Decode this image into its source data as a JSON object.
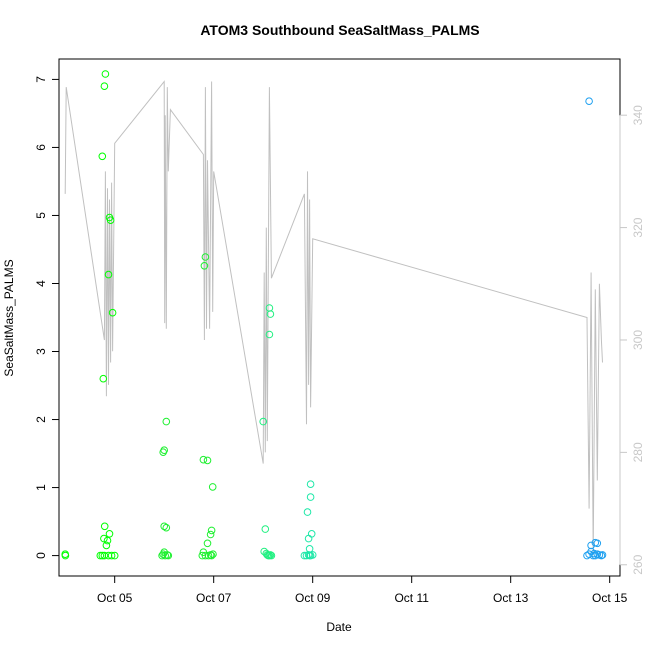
{
  "chart_data": {
    "type": "scatter",
    "title": "ATOM3 Southbound SeaSaltMass_PALMS",
    "xlabel": "Date",
    "ylabel": "SeaSaltMass_PALMS",
    "x_unit": "days",
    "x_range": [
      "2017-10-03T21:00",
      "2017-10-15T05:00"
    ],
    "x_ticks": [
      "Oct 05",
      "Oct 07",
      "Oct 09",
      "Oct 11",
      "Oct 13",
      "Oct 15"
    ],
    "x_tick_dates": [
      "2017-10-05",
      "2017-10-07",
      "2017-10-09",
      "2017-10-11",
      "2017-10-13",
      "2017-10-15"
    ],
    "ylim": [
      -0.3,
      7.3
    ],
    "y_ticks": [
      0,
      1,
      2,
      3,
      4,
      5,
      6,
      7
    ],
    "y2lim": [
      258,
      350
    ],
    "y2_ticks": [
      260,
      280,
      300,
      320,
      340
    ],
    "series": [
      {
        "color": "#00ff00",
        "points": [
          [
            "2017-10-04T00:00",
            0.02
          ],
          [
            "2017-10-04T00:05",
            0.0
          ],
          [
            "2017-10-04T18:00",
            5.87
          ],
          [
            "2017-10-04T19:00",
            6.9
          ],
          [
            "2017-10-04T19:30",
            7.08
          ],
          [
            "2017-10-04T21:30",
            4.97
          ],
          [
            "2017-10-04T22:00",
            4.93
          ],
          [
            "2017-10-04T21:00",
            4.13
          ],
          [
            "2017-10-04T23:00",
            3.57
          ],
          [
            "2017-10-04T18:30",
            2.6
          ],
          [
            "2017-10-04T19:10",
            0.43
          ],
          [
            "2017-10-04T18:45",
            0.25
          ],
          [
            "2017-10-04T20:30",
            0.22
          ],
          [
            "2017-10-04T20:00",
            0.15
          ],
          [
            "2017-10-04T21:30",
            0.32
          ],
          [
            "2017-10-04T17:00",
            0.0
          ],
          [
            "2017-10-04T18:00",
            0.0
          ],
          [
            "2017-10-04T19:00",
            0.0
          ],
          [
            "2017-10-04T21:00",
            0.0
          ],
          [
            "2017-10-04T22:30",
            0.0
          ],
          [
            "2017-10-05T00:00",
            0.0
          ]
        ]
      },
      {
        "color": "#1ef030",
        "points": [
          [
            "2017-10-06T01:00",
            1.97
          ],
          [
            "2017-10-06T00:00",
            1.55
          ],
          [
            "2017-10-05T23:30",
            1.52
          ],
          [
            "2017-10-06T00:00",
            0.43
          ],
          [
            "2017-10-06T01:00",
            0.41
          ],
          [
            "2017-10-05T23:00",
            0.0
          ],
          [
            "2017-10-05T23:30",
            0.02
          ],
          [
            "2017-10-06T00:00",
            0.05
          ],
          [
            "2017-10-06T00:30",
            0.0
          ],
          [
            "2017-10-06T01:30",
            0.01
          ],
          [
            "2017-10-06T02:00",
            0.0
          ],
          [
            "2017-10-06T20:00",
            4.39
          ],
          [
            "2017-10-06T19:30",
            4.26
          ],
          [
            "2017-10-06T19:00",
            1.41
          ],
          [
            "2017-10-06T21:00",
            1.4
          ],
          [
            "2017-10-06T23:30",
            1.01
          ],
          [
            "2017-10-06T23:00",
            0.37
          ],
          [
            "2017-10-06T22:30",
            0.31
          ],
          [
            "2017-10-06T21:00",
            0.18
          ],
          [
            "2017-10-06T19:00",
            0.05
          ],
          [
            "2017-10-06T18:30",
            0.0
          ],
          [
            "2017-10-06T20:00",
            0.0
          ],
          [
            "2017-10-06T21:30",
            0.0
          ],
          [
            "2017-10-06T22:30",
            0.01
          ],
          [
            "2017-10-06T23:00",
            0.0
          ],
          [
            "2017-10-06T23:40",
            0.02
          ]
        ]
      },
      {
        "color": "#20f080",
        "points": [
          [
            "2017-10-08T00:00",
            1.97
          ],
          [
            "2017-10-08T01:00",
            0.39
          ],
          [
            "2017-10-08T03:00",
            3.64
          ],
          [
            "2017-10-08T03:30",
            3.55
          ],
          [
            "2017-10-08T03:00",
            3.25
          ],
          [
            "2017-10-08T00:30",
            0.06
          ],
          [
            "2017-10-08T01:30",
            0.03
          ],
          [
            "2017-10-08T02:00",
            0.01
          ],
          [
            "2017-10-08T02:30",
            0.0
          ],
          [
            "2017-10-08T03:00",
            0.0
          ],
          [
            "2017-10-08T03:30",
            0.01
          ],
          [
            "2017-10-08T04:00",
            0.0
          ]
        ]
      },
      {
        "color": "#1ee8a8",
        "points": [
          [
            "2017-10-08T21:30",
            0.64
          ],
          [
            "2017-10-08T23:00",
            1.05
          ],
          [
            "2017-10-08T23:00",
            0.86
          ],
          [
            "2017-10-08T23:30",
            0.32
          ],
          [
            "2017-10-08T22:00",
            0.25
          ],
          [
            "2017-10-08T22:30",
            0.1
          ],
          [
            "2017-10-08T20:00",
            0.0
          ],
          [
            "2017-10-08T21:00",
            0.0
          ],
          [
            "2017-10-08T22:00",
            0.01
          ],
          [
            "2017-10-08T22:30",
            0.0
          ],
          [
            "2017-10-08T23:00",
            0.0
          ],
          [
            "2017-10-09T00:00",
            0.01
          ]
        ]
      },
      {
        "color": "#1ea0f0",
        "points": [
          [
            "2017-10-14T14:00",
            6.68
          ],
          [
            "2017-10-14T15:00",
            0.15
          ],
          [
            "2017-10-14T17:00",
            0.19
          ],
          [
            "2017-10-14T18:00",
            0.18
          ],
          [
            "2017-10-14T13:00",
            0.0
          ],
          [
            "2017-10-14T14:00",
            0.02
          ],
          [
            "2017-10-14T15:00",
            0.06
          ],
          [
            "2017-10-14T16:00",
            0.0
          ],
          [
            "2017-10-14T16:30",
            0.03
          ],
          [
            "2017-10-14T17:00",
            0.0
          ],
          [
            "2017-10-14T18:00",
            0.02
          ],
          [
            "2017-10-14T19:00",
            0.01
          ],
          [
            "2017-10-14T20:00",
            0.0
          ],
          [
            "2017-10-14T20:30",
            0.01
          ]
        ]
      }
    ],
    "secondary_line": {
      "axis": "right",
      "color": "#c0c0c0",
      "points": [
        [
          "2017-10-04T00:00",
          326
        ],
        [
          "2017-10-04T00:30",
          345
        ],
        [
          "2017-10-04T19:00",
          300
        ],
        [
          "2017-10-04T19:30",
          330
        ],
        [
          "2017-10-04T20:00",
          290
        ],
        [
          "2017-10-04T20:30",
          327
        ],
        [
          "2017-10-04T21:00",
          292
        ],
        [
          "2017-10-04T21:30",
          325
        ],
        [
          "2017-10-04T22:00",
          296
        ],
        [
          "2017-10-04T22:30",
          328
        ],
        [
          "2017-10-04T23:00",
          298
        ],
        [
          "2017-10-05T00:00",
          335
        ],
        [
          "2017-10-06T00:00",
          346
        ],
        [
          "2017-10-06T00:15",
          303
        ],
        [
          "2017-10-06T00:30",
          340
        ],
        [
          "2017-10-06T01:00",
          302
        ],
        [
          "2017-10-06T01:30",
          345
        ],
        [
          "2017-10-06T02:00",
          330
        ],
        [
          "2017-10-06T03:00",
          341
        ],
        [
          "2017-10-06T19:00",
          333
        ],
        [
          "2017-10-06T19:30",
          300
        ],
        [
          "2017-10-06T20:00",
          345
        ],
        [
          "2017-10-06T20:30",
          302
        ],
        [
          "2017-10-06T21:00",
          332
        ],
        [
          "2017-10-06T22:00",
          302
        ],
        [
          "2017-10-06T23:00",
          346
        ],
        [
          "2017-10-06T23:30",
          305
        ],
        [
          "2017-10-07T00:00",
          330
        ],
        [
          "2017-10-08T00:00",
          278
        ],
        [
          "2017-10-08T00:30",
          312
        ],
        [
          "2017-10-08T01:00",
          280
        ],
        [
          "2017-10-08T01:30",
          320
        ],
        [
          "2017-10-08T02:00",
          282
        ],
        [
          "2017-10-08T03:00",
          345
        ],
        [
          "2017-10-08T04:00",
          311
        ],
        [
          "2017-10-08T20:00",
          326
        ],
        [
          "2017-10-08T21:00",
          285
        ],
        [
          "2017-10-08T21:30",
          330
        ],
        [
          "2017-10-08T22:00",
          292
        ],
        [
          "2017-10-08T22:30",
          325
        ],
        [
          "2017-10-08T23:00",
          288
        ],
        [
          "2017-10-09T00:00",
          318
        ],
        [
          "2017-10-14T13:00",
          304
        ],
        [
          "2017-10-14T14:00",
          270
        ],
        [
          "2017-10-14T15:00",
          312
        ],
        [
          "2017-10-14T16:00",
          262
        ],
        [
          "2017-10-14T17:00",
          309
        ],
        [
          "2017-10-14T18:00",
          275
        ],
        [
          "2017-10-14T19:00",
          310
        ],
        [
          "2017-10-14T20:00",
          300
        ],
        [
          "2017-10-14T20:30",
          296
        ]
      ]
    },
    "grid": false,
    "legend": "none"
  }
}
